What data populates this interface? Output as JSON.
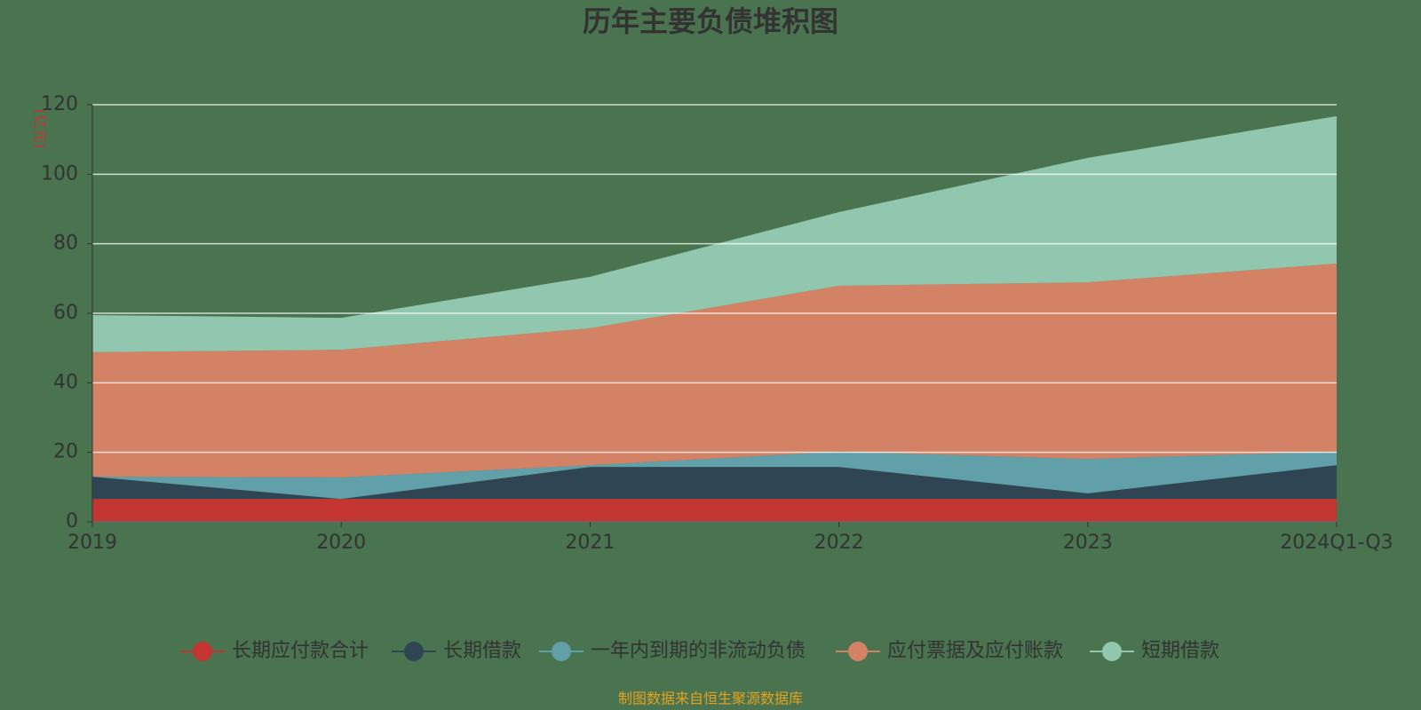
{
  "chart_data": {
    "type": "stacked_area",
    "title": "历年主要负债堆积图",
    "y_axis_label": "(亿元)",
    "footer": "制图数据来自恒生聚源数据库",
    "categories": [
      "2019",
      "2020",
      "2021",
      "2022",
      "2023",
      "2024Q1-Q3"
    ],
    "series": [
      {
        "name": "长期应付款合计",
        "color": "#c23531",
        "values": [
          6.6,
          6.6,
          6.6,
          6.6,
          6.6,
          6.6
        ]
      },
      {
        "name": "长期借款",
        "color": "#2f4554",
        "values": [
          6.4,
          0,
          9.2,
          9.2,
          1.6,
          9.7
        ]
      },
      {
        "name": "一年内到期的非流动负债",
        "color": "#61a0a8",
        "values": [
          0,
          6.2,
          0.5,
          4.4,
          9.9,
          3.9
        ]
      },
      {
        "name": "应付票据及应付账款",
        "color": "#d48265",
        "values": [
          35.8,
          36.7,
          39.4,
          47.7,
          50.8,
          54.1
        ]
      },
      {
        "name": "短期借款",
        "color": "#91c7ae",
        "values": [
          10.7,
          9.2,
          14.8,
          21.2,
          35.8,
          42.4
        ]
      }
    ],
    "ylim": [
      0,
      120
    ],
    "yticks": [
      0,
      20,
      40,
      60,
      80,
      100,
      120
    ],
    "grid": true
  }
}
